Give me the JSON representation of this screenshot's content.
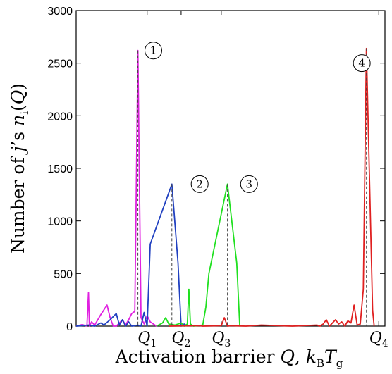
{
  "chart_data": {
    "type": "line",
    "xlabel": "Activation barrier Q, k_B T_g",
    "ylabel": "Number of j’s n_i(Q)",
    "ylim": [
      0,
      3000
    ],
    "xlim": [
      0,
      100
    ],
    "y_ticks": [
      "0",
      "500",
      "1000",
      "1500",
      "2000",
      "2500",
      "3000"
    ],
    "x_ticks": [
      "Q1",
      "Q2",
      "Q3",
      "Q4"
    ],
    "x_tick_values": [
      23,
      34,
      47,
      98
    ],
    "grid": false,
    "series": [
      {
        "id": "1",
        "color": "#e020e0",
        "points": [
          [
            0,
            0
          ],
          [
            2,
            15
          ],
          [
            3.5,
            0
          ],
          [
            4,
            320
          ],
          [
            4.3,
            0
          ],
          [
            5,
            40
          ],
          [
            6,
            10
          ],
          [
            8,
            110
          ],
          [
            10,
            200
          ],
          [
            11,
            80
          ],
          [
            12,
            0
          ],
          [
            13,
            0
          ],
          [
            14,
            30
          ],
          [
            15,
            60
          ],
          [
            16,
            10
          ],
          [
            17,
            60
          ],
          [
            18,
            120
          ],
          [
            19,
            140
          ],
          [
            20,
            2620
          ],
          [
            21,
            80
          ],
          [
            22,
            20
          ],
          [
            23,
            100
          ],
          [
            24,
            40
          ],
          [
            26,
            0
          ]
        ]
      },
      {
        "id": "2",
        "color": "#2040c0",
        "points": [
          [
            0,
            0
          ],
          [
            2,
            5
          ],
          [
            4,
            10
          ],
          [
            6,
            0
          ],
          [
            8,
            30
          ],
          [
            9,
            10
          ],
          [
            11,
            60
          ],
          [
            13,
            120
          ],
          [
            14,
            10
          ],
          [
            15,
            60
          ],
          [
            16,
            0
          ],
          [
            17,
            40
          ],
          [
            18,
            0
          ],
          [
            20,
            10
          ],
          [
            21,
            0
          ],
          [
            22,
            130
          ],
          [
            23,
            0
          ],
          [
            24,
            780
          ],
          [
            31,
            1350
          ],
          [
            33,
            600
          ],
          [
            34,
            0
          ],
          [
            35,
            20
          ],
          [
            36,
            0
          ]
        ]
      },
      {
        "id": "3",
        "color": "#20e020",
        "points": [
          [
            26,
            0
          ],
          [
            28,
            30
          ],
          [
            29,
            80
          ],
          [
            30,
            20
          ],
          [
            32,
            10
          ],
          [
            34,
            30
          ],
          [
            35,
            0
          ],
          [
            36,
            20
          ],
          [
            36.5,
            350
          ],
          [
            37,
            20
          ],
          [
            38,
            0
          ],
          [
            41,
            10
          ],
          [
            42,
            180
          ],
          [
            43,
            500
          ],
          [
            49,
            1350
          ],
          [
            52,
            600
          ],
          [
            53,
            0
          ]
        ]
      },
      {
        "id": "4",
        "color": "#e02020",
        "points": [
          [
            30,
            0
          ],
          [
            40,
            5
          ],
          [
            41,
            0
          ],
          [
            47,
            5
          ],
          [
            48,
            80
          ],
          [
            49,
            0
          ],
          [
            50,
            5
          ],
          [
            55,
            0
          ],
          [
            60,
            10
          ],
          [
            70,
            0
          ],
          [
            78,
            10
          ],
          [
            79,
            0
          ],
          [
            80,
            20
          ],
          [
            81,
            60
          ],
          [
            82,
            0
          ],
          [
            84,
            60
          ],
          [
            85,
            20
          ],
          [
            86,
            40
          ],
          [
            87,
            0
          ],
          [
            88,
            50
          ],
          [
            89,
            30
          ],
          [
            90,
            200
          ],
          [
            91,
            10
          ],
          [
            92,
            20
          ],
          [
            93,
            350
          ],
          [
            94,
            2640
          ],
          [
            96,
            150
          ],
          [
            96.5,
            0
          ]
        ]
      }
    ],
    "peak_labels": [
      "1",
      "2",
      "3",
      "4"
    ],
    "peak_label_positions": [
      [
        25,
        2620
      ],
      [
        40,
        1350
      ],
      [
        56,
        1350
      ],
      [
        92.5,
        2500
      ]
    ],
    "dashed_lines": [
      [
        20,
        2620
      ],
      [
        31,
        1350
      ],
      [
        49,
        1350
      ],
      [
        94,
        2640
      ]
    ]
  }
}
